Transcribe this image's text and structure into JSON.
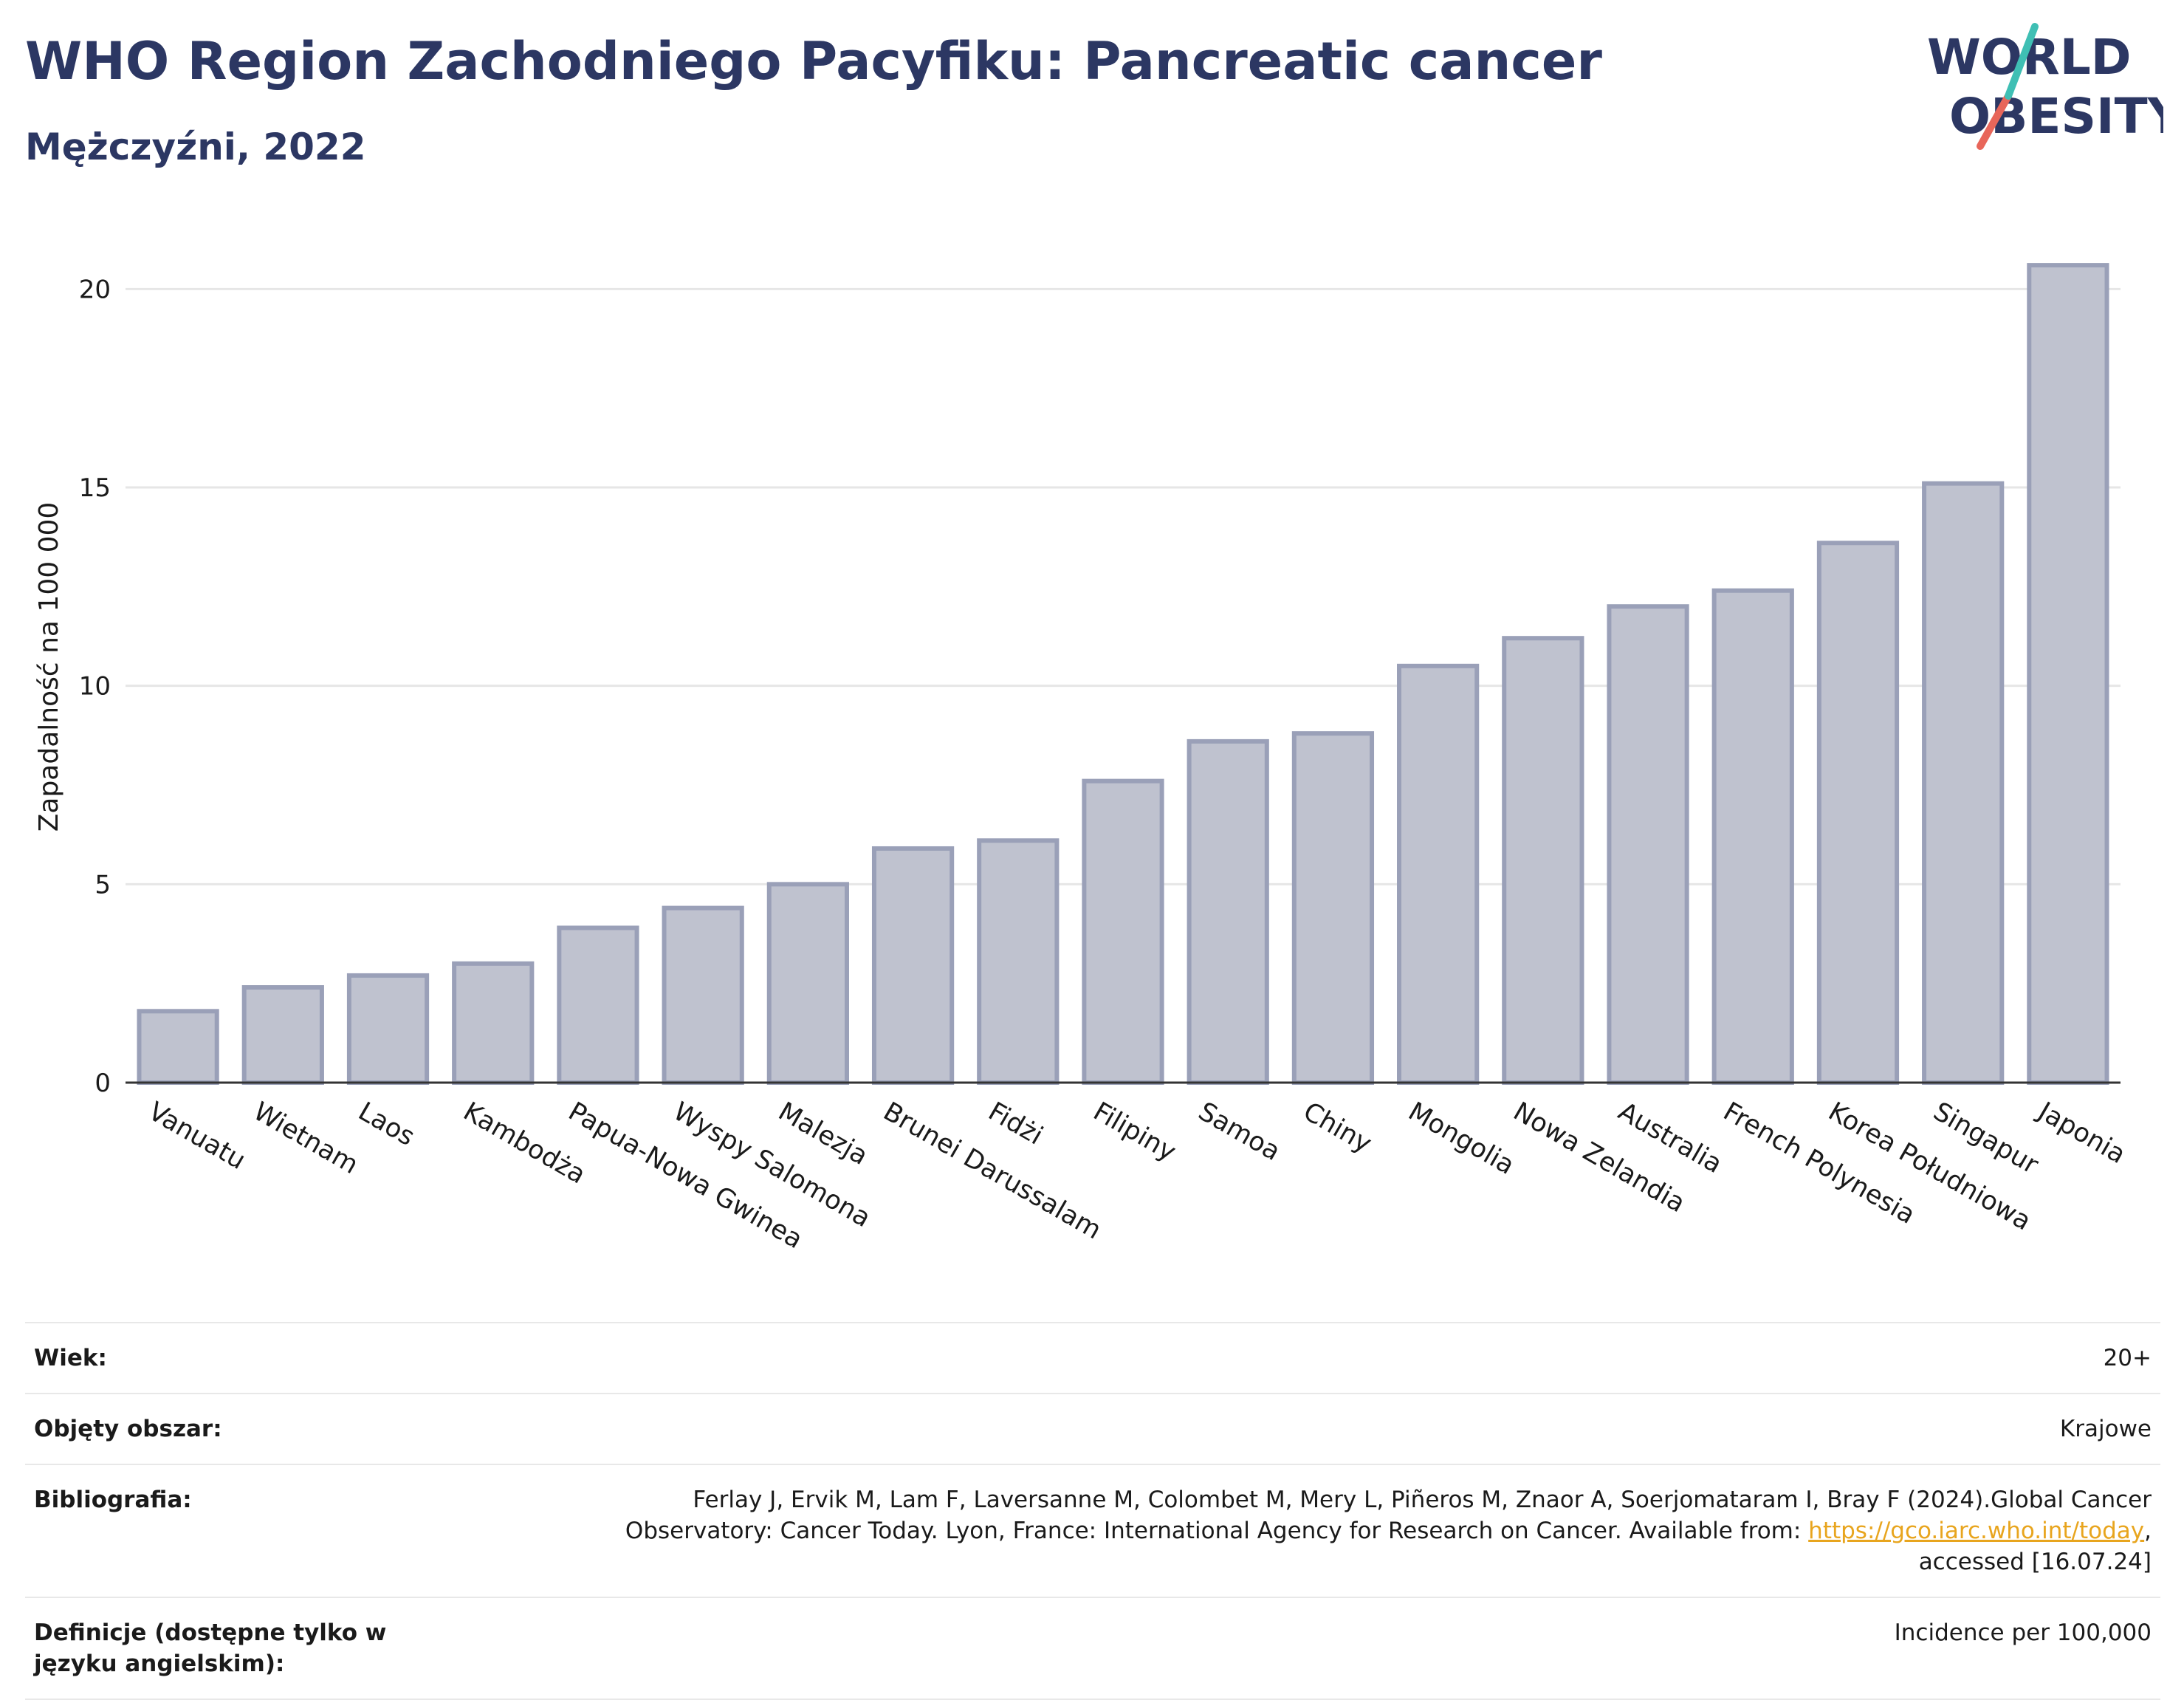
{
  "header": {
    "title": "WHO Region Zachodniego Pacyfiku: Pancreatic cancer",
    "subtitle": "Mężczyźni, 2022"
  },
  "logo": {
    "line1": "WORLD",
    "line2": "OBESITY",
    "colors": {
      "text": "#2c3763",
      "slash_teal": "#3fbfb4",
      "slash_red": "#e8665a"
    }
  },
  "colors": {
    "bar_fill": "#bfc2cf",
    "bar_stroke": "#9aa0b8",
    "grid": "#e6e6e6",
    "axis": "#333333",
    "title": "#2c3763",
    "link": "#e8a51e"
  },
  "chart_data": {
    "type": "bar",
    "title": "WHO Region Zachodniego Pacyfiku: Pancreatic cancer",
    "subtitle": "Mężczyźni, 2022",
    "xlabel": "",
    "ylabel": "Zapadalność na 100 000",
    "ylim": [
      0,
      21.7
    ],
    "yticks": [
      0,
      5,
      10,
      15,
      20
    ],
    "grid": true,
    "categories": [
      "Vanuatu",
      "Wietnam",
      "Laos",
      "Kambodża",
      "Papua-Nowa Gwinea",
      "Wyspy Salomona",
      "Malezja",
      "Brunei Darussalam",
      "Fidżi",
      "Filipiny",
      "Samoa",
      "Chiny",
      "Mongolia",
      "Nowa Zelandia",
      "Australia",
      "French Polynesia",
      "Korea Południowa",
      "Singapur",
      "Japonia"
    ],
    "values": [
      1.8,
      2.4,
      2.7,
      3.0,
      3.9,
      4.4,
      5.0,
      5.9,
      6.1,
      7.6,
      8.6,
      8.8,
      10.5,
      11.2,
      12.0,
      12.4,
      13.6,
      15.1,
      20.6
    ]
  },
  "info": [
    {
      "key": "Wiek:",
      "value": "20+"
    },
    {
      "key": "Objęty obszar:",
      "value": "Krajowe"
    },
    {
      "key": "Bibliografia:",
      "value_line1": "Ferlay J, Ervik M, Lam F, Laversanne M, Colombet M, Mery L, Piñeros M, Znaor A, Soerjomataram I, Bray F (2024).Global Cancer",
      "value_line2_pre": "Observatory: Cancer Today. Lyon, France: International Agency for Research on Cancer. Available from: ",
      "link": "https://gco.iarc.who.int/today",
      "value_line2_post": ",",
      "value_line3": "accessed [16.07.24]"
    },
    {
      "key": "Definicje (dostępne tylko w języku angielskim):",
      "value": "Incidence per 100,000"
    }
  ]
}
